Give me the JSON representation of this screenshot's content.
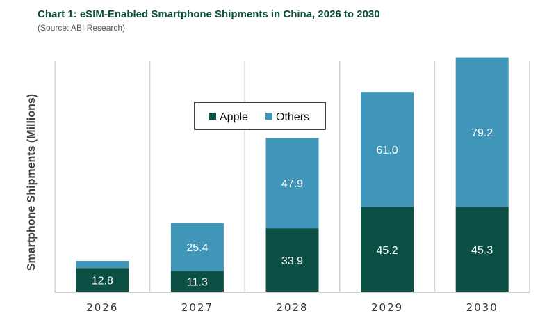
{
  "chart_data": {
    "type": "bar",
    "stacked": true,
    "title": "Chart 1: eSIM-Enabled Smartphone Shipments in China, 2026 to 2030",
    "subtitle": "(Source: ABI Research)",
    "xlabel": "",
    "ylabel": "Smartphone Shipments (Millions)",
    "ylim": [
      0,
      130
    ],
    "grid": "vertical",
    "legend": "top-center",
    "categories": [
      "2026",
      "2027",
      "2028",
      "2029",
      "2030"
    ],
    "series": [
      {
        "name": "Apple",
        "color": "#0b4f45",
        "values": [
          12.8,
          11.3,
          33.9,
          45.2,
          45.3
        ],
        "labels": [
          "12.8",
          "11.3",
          "33.9",
          "45.2",
          "45.3"
        ]
      },
      {
        "name": "Others",
        "color": "#4096b8",
        "values": [
          3.8,
          25.4,
          47.9,
          61.0,
          79.2
        ],
        "labels": [
          "",
          "25.4",
          "47.9",
          "61.0",
          "79.2"
        ]
      }
    ]
  }
}
